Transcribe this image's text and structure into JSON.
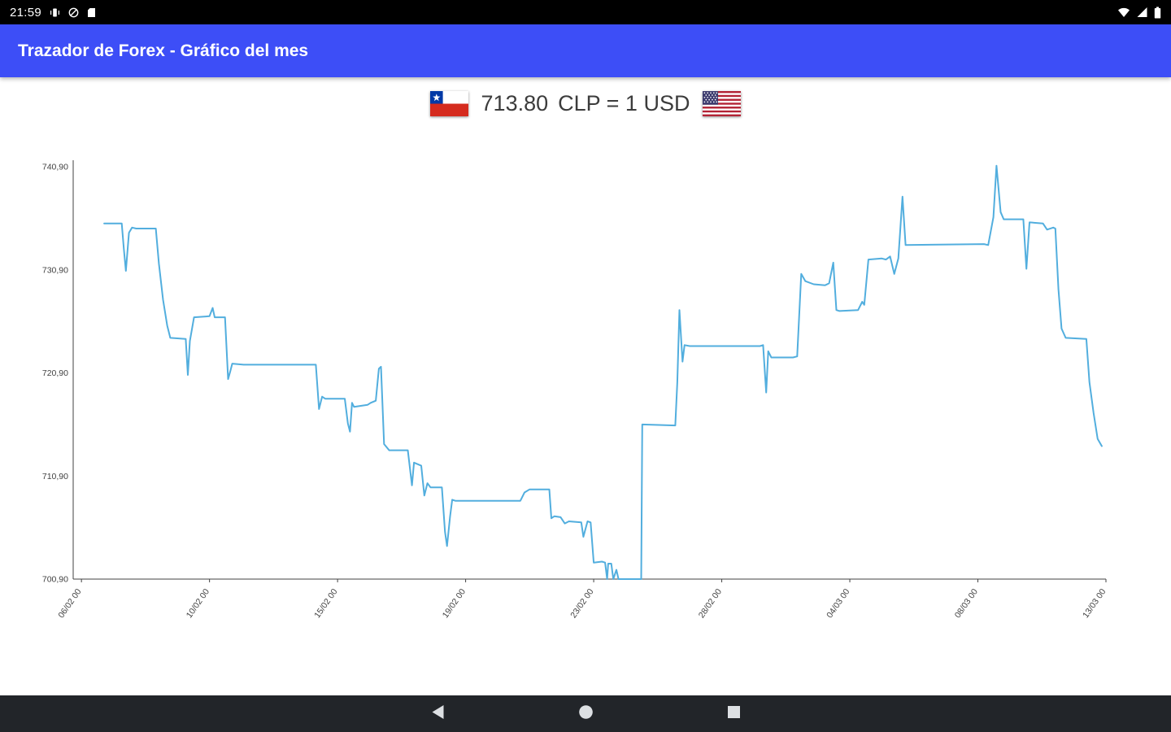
{
  "status_bar": {
    "time": "21:59",
    "left_icons": [
      "vibrate-icon",
      "do-not-disturb-icon",
      "sd-card-icon"
    ],
    "right_icons": [
      "wifi-icon",
      "cellular-signal-icon",
      "battery-icon"
    ]
  },
  "app_bar": {
    "title": "Trazador de Forex - Gráfico del mes",
    "background": "#3D4EF7"
  },
  "quote": {
    "value": "713.80",
    "label": "CLP = 1 USD",
    "base_flag": "chile-flag",
    "quote_flag": "us-flag"
  },
  "nav_bar": {
    "buttons": [
      "back",
      "home",
      "recents"
    ]
  },
  "chart_data": {
    "type": "line",
    "title": "",
    "xlabel": "",
    "ylabel": "",
    "ylim": [
      700.9,
      740.9
    ],
    "x_range": [
      "06/02 00",
      "13/03 00"
    ],
    "grid": false,
    "legend": false,
    "line_color": "#52AEDE",
    "axis_color": "#424242",
    "tick_label_color": "#424242",
    "y_ticks": [
      {
        "value": 740.9,
        "label": "740,90"
      },
      {
        "value": 730.9,
        "label": "730,90"
      },
      {
        "value": 720.9,
        "label": "720,90"
      },
      {
        "value": 710.9,
        "label": "710,90"
      },
      {
        "value": 700.9,
        "label": "700,90"
      }
    ],
    "x_ticks": [
      {
        "t": 0.008,
        "label": "06/02 00"
      },
      {
        "t": 0.132,
        "label": "10/02 00"
      },
      {
        "t": 0.256,
        "label": "15/02 00"
      },
      {
        "t": 0.38,
        "label": "19/02 00"
      },
      {
        "t": 0.504,
        "label": "23/02 00"
      },
      {
        "t": 0.628,
        "label": "28/02 00"
      },
      {
        "t": 0.752,
        "label": "04/03 00"
      },
      {
        "t": 0.876,
        "label": "08/03 00"
      },
      {
        "t": 1.0,
        "label": "13/03 00"
      }
    ],
    "series": [
      {
        "name": "CLP per 1 USD",
        "x_unit": "fraction of x-axis range (06/02 00 to 13/03 00)",
        "points": [
          [
            0.03,
            735.4
          ],
          [
            0.047,
            735.4
          ],
          [
            0.049,
            733.0
          ],
          [
            0.051,
            730.8
          ],
          [
            0.054,
            734.5
          ],
          [
            0.057,
            735.0
          ],
          [
            0.061,
            734.9
          ],
          [
            0.08,
            734.9
          ],
          [
            0.083,
            731.5
          ],
          [
            0.087,
            728.0
          ],
          [
            0.091,
            725.5
          ],
          [
            0.094,
            724.3
          ],
          [
            0.109,
            724.2
          ],
          [
            0.111,
            720.7
          ],
          [
            0.113,
            724.0
          ],
          [
            0.117,
            726.3
          ],
          [
            0.132,
            726.4
          ],
          [
            0.135,
            727.2
          ],
          [
            0.137,
            726.3
          ],
          [
            0.147,
            726.3
          ],
          [
            0.15,
            720.3
          ],
          [
            0.152,
            721.0
          ],
          [
            0.154,
            721.8
          ],
          [
            0.165,
            721.7
          ],
          [
            0.235,
            721.7
          ],
          [
            0.238,
            717.4
          ],
          [
            0.241,
            718.6
          ],
          [
            0.244,
            718.4
          ],
          [
            0.263,
            718.4
          ],
          [
            0.266,
            716.0
          ],
          [
            0.268,
            715.2
          ],
          [
            0.27,
            718.0
          ],
          [
            0.272,
            717.6
          ],
          [
            0.285,
            717.8
          ],
          [
            0.288,
            718.0
          ],
          [
            0.293,
            718.2
          ],
          [
            0.296,
            721.3
          ],
          [
            0.298,
            721.5
          ],
          [
            0.301,
            714.0
          ],
          [
            0.306,
            713.4
          ],
          [
            0.324,
            713.4
          ],
          [
            0.328,
            710.0
          ],
          [
            0.33,
            712.2
          ],
          [
            0.337,
            711.9
          ],
          [
            0.34,
            709.0
          ],
          [
            0.343,
            710.2
          ],
          [
            0.346,
            709.8
          ],
          [
            0.357,
            709.8
          ],
          [
            0.36,
            705.5
          ],
          [
            0.362,
            704.1
          ],
          [
            0.365,
            707.0
          ],
          [
            0.367,
            708.6
          ],
          [
            0.37,
            708.5
          ],
          [
            0.433,
            708.5
          ],
          [
            0.437,
            709.3
          ],
          [
            0.442,
            709.6
          ],
          [
            0.461,
            709.6
          ],
          [
            0.463,
            706.8
          ],
          [
            0.466,
            707.0
          ],
          [
            0.472,
            706.9
          ],
          [
            0.476,
            706.3
          ],
          [
            0.48,
            706.5
          ],
          [
            0.492,
            706.4
          ],
          [
            0.494,
            705.0
          ],
          [
            0.498,
            706.5
          ],
          [
            0.501,
            706.4
          ],
          [
            0.504,
            702.5
          ],
          [
            0.512,
            702.6
          ],
          [
            0.515,
            702.5
          ],
          [
            0.517,
            700.9
          ],
          [
            0.518,
            702.4
          ],
          [
            0.521,
            702.4
          ],
          [
            0.523,
            700.9
          ],
          [
            0.526,
            701.8
          ],
          [
            0.528,
            700.9
          ],
          [
            0.55,
            700.9
          ],
          [
            0.551,
            715.9
          ],
          [
            0.583,
            715.8
          ],
          [
            0.585,
            720.0
          ],
          [
            0.587,
            727.0
          ],
          [
            0.59,
            722.0
          ],
          [
            0.592,
            723.6
          ],
          [
            0.597,
            723.5
          ],
          [
            0.665,
            723.5
          ],
          [
            0.668,
            723.6
          ],
          [
            0.671,
            719.0
          ],
          [
            0.673,
            723.0
          ],
          [
            0.676,
            722.4
          ],
          [
            0.697,
            722.4
          ],
          [
            0.701,
            722.5
          ],
          [
            0.705,
            730.5
          ],
          [
            0.709,
            729.8
          ],
          [
            0.717,
            729.5
          ],
          [
            0.728,
            729.4
          ],
          [
            0.732,
            729.6
          ],
          [
            0.736,
            731.6
          ],
          [
            0.739,
            727.0
          ],
          [
            0.742,
            726.9
          ],
          [
            0.76,
            727.0
          ],
          [
            0.764,
            727.8
          ],
          [
            0.766,
            727.5
          ],
          [
            0.77,
            731.9
          ],
          [
            0.783,
            732.0
          ],
          [
            0.787,
            731.9
          ],
          [
            0.791,
            732.2
          ],
          [
            0.795,
            730.5
          ],
          [
            0.799,
            732.0
          ],
          [
            0.803,
            738.0
          ],
          [
            0.806,
            733.3
          ],
          [
            0.882,
            733.4
          ],
          [
            0.886,
            733.3
          ],
          [
            0.891,
            736.0
          ],
          [
            0.894,
            741.0
          ],
          [
            0.898,
            736.5
          ],
          [
            0.901,
            735.8
          ],
          [
            0.92,
            735.8
          ],
          [
            0.923,
            731.0
          ],
          [
            0.926,
            735.5
          ],
          [
            0.939,
            735.4
          ],
          [
            0.943,
            734.8
          ],
          [
            0.949,
            735.0
          ],
          [
            0.951,
            734.9
          ],
          [
            0.954,
            729.0
          ],
          [
            0.957,
            725.2
          ],
          [
            0.961,
            724.3
          ],
          [
            0.981,
            724.2
          ],
          [
            0.984,
            720.0
          ],
          [
            0.988,
            717.0
          ],
          [
            0.992,
            714.5
          ],
          [
            0.996,
            713.8
          ]
        ]
      }
    ]
  }
}
